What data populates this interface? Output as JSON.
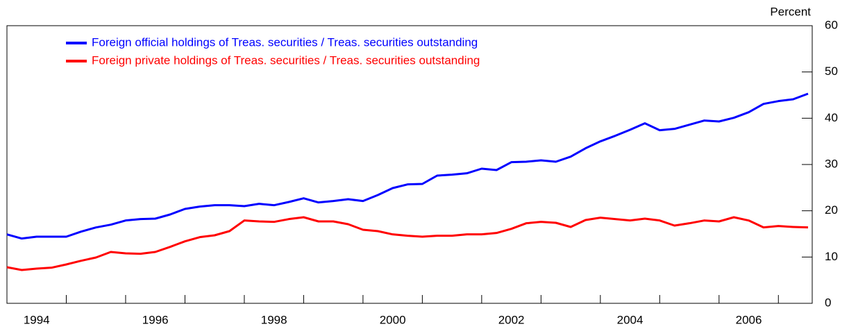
{
  "chart_data": {
    "type": "line",
    "y_axis_label": "Percent",
    "x": [
      1994,
      1994.25,
      1994.5,
      1994.75,
      1995,
      1995.25,
      1995.5,
      1995.75,
      1996,
      1996.25,
      1996.5,
      1996.75,
      1997,
      1997.25,
      1997.5,
      1997.75,
      1998,
      1998.25,
      1998.5,
      1998.75,
      1999,
      1999.25,
      1999.5,
      1999.75,
      2000,
      2000.25,
      2000.5,
      2000.75,
      2001,
      2001.25,
      2001.5,
      2001.75,
      2002,
      2002.25,
      2002.5,
      2002.75,
      2003,
      2003.25,
      2003.5,
      2003.75,
      2004,
      2004.25,
      2004.5,
      2004.75,
      2005,
      2005.25,
      2005.5,
      2005.75,
      2006,
      2006.25,
      2006.5,
      2006.75,
      2007,
      2007.25,
      2007.5
    ],
    "series": [
      {
        "name": "Foreign official holdings of Treas. securities / Treas. securities outstanding",
        "color": "#0000ff",
        "values": [
          14.9,
          14.0,
          14.4,
          14.4,
          14.4,
          15.5,
          16.4,
          17.0,
          17.9,
          18.2,
          18.3,
          19.2,
          20.4,
          20.9,
          21.2,
          21.2,
          21.0,
          21.5,
          21.2,
          21.9,
          22.7,
          21.8,
          22.1,
          22.5,
          22.1,
          23.4,
          24.9,
          25.7,
          25.8,
          27.6,
          27.8,
          28.1,
          29.1,
          28.8,
          30.5,
          30.6,
          30.9,
          30.6,
          31.7,
          33.5,
          35.0,
          36.2,
          37.5,
          38.9,
          37.4,
          37.7,
          38.6,
          39.5,
          39.3,
          40.1,
          41.3,
          43.1,
          43.7,
          44.1,
          45.3
        ]
      },
      {
        "name": "Foreign private holdings of Treas. securities / Treas. securities outstanding",
        "color": "#ff0000",
        "values": [
          7.8,
          7.2,
          7.5,
          7.7,
          8.4,
          9.2,
          9.9,
          11.1,
          10.8,
          10.7,
          11.1,
          12.2,
          13.4,
          14.3,
          14.7,
          15.6,
          17.9,
          17.7,
          17.6,
          18.2,
          18.6,
          17.7,
          17.7,
          17.1,
          15.9,
          15.6,
          14.9,
          14.6,
          14.4,
          14.6,
          14.6,
          14.9,
          14.9,
          15.2,
          16.1,
          17.3,
          17.6,
          17.4,
          16.5,
          18.0,
          18.5,
          18.2,
          17.9,
          18.3,
          17.9,
          16.8,
          17.3,
          17.9,
          17.7,
          18.6,
          17.9,
          16.4,
          16.7,
          16.5,
          16.4
        ]
      }
    ],
    "xlim": [
      1994,
      2007.57
    ],
    "xticks": [
      1995,
      1996,
      1997,
      1998,
      1999,
      2000,
      2001,
      2002,
      2003,
      2004,
      2005,
      2006,
      2007
    ],
    "xtick_labels": [
      {
        "value": 1994.5,
        "label": "1994"
      },
      {
        "value": 1996.5,
        "label": "1996"
      },
      {
        "value": 1998.5,
        "label": "1998"
      },
      {
        "value": 2000.5,
        "label": "2000"
      },
      {
        "value": 2002.5,
        "label": "2002"
      },
      {
        "value": 2004.5,
        "label": "2004"
      },
      {
        "value": 2006.5,
        "label": "2006"
      }
    ],
    "ylim": [
      0,
      60
    ],
    "yticks": [
      0,
      10,
      20,
      30,
      40,
      50,
      60
    ]
  }
}
